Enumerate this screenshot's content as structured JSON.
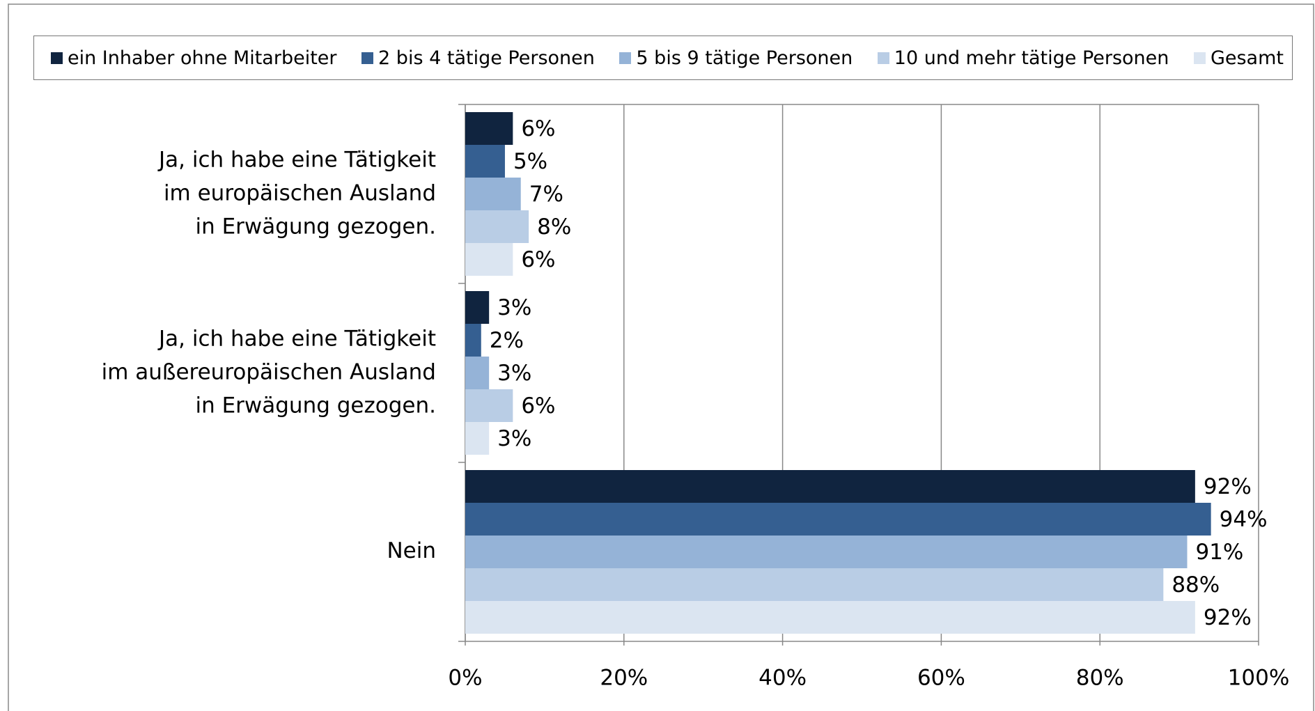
{
  "chart_data": {
    "type": "barh",
    "categories": [
      "Ja, ich habe eine Tätigkeit\nim europäischen Ausland\nin Erwägung gezogen.",
      "Ja, ich habe eine Tätigkeit\nim außereuropäischen Ausland\nin Erwägung gezogen.",
      "Nein"
    ],
    "series": [
      {
        "name": "ein Inhaber ohne Mitarbeiter",
        "color": "#10243f",
        "values": [
          6,
          3,
          92
        ],
        "value_labels": [
          "6%",
          "3%",
          "92%"
        ]
      },
      {
        "name": "2 bis 4 tätige Personen",
        "color": "#355f91",
        "values": [
          5,
          2,
          94
        ],
        "value_labels": [
          "5%",
          "2%",
          "94%"
        ]
      },
      {
        "name": "5 bis 9 tätige Personen",
        "color": "#95b3d7",
        "values": [
          7,
          3,
          91
        ],
        "value_labels": [
          "7%",
          "3%",
          "91%"
        ]
      },
      {
        "name": "10 und mehr tätige Personen",
        "color": "#b9cde5",
        "values": [
          8,
          6,
          88
        ],
        "value_labels": [
          "8%",
          "6%",
          "88%"
        ]
      },
      {
        "name": "Gesamt",
        "color": "#dbe5f1",
        "values": [
          6,
          3,
          92
        ],
        "value_labels": [
          "6%",
          "3%",
          "92%"
        ]
      }
    ],
    "xlim": [
      0,
      100
    ],
    "xticks": [
      {
        "value": 0,
        "label": "0%"
      },
      {
        "value": 20,
        "label": "20%"
      },
      {
        "value": 40,
        "label": "40%"
      },
      {
        "value": 60,
        "label": "60%"
      },
      {
        "value": 80,
        "label": "80%"
      },
      {
        "value": 100,
        "label": "100%"
      }
    ],
    "grid": true,
    "legend": "top"
  }
}
